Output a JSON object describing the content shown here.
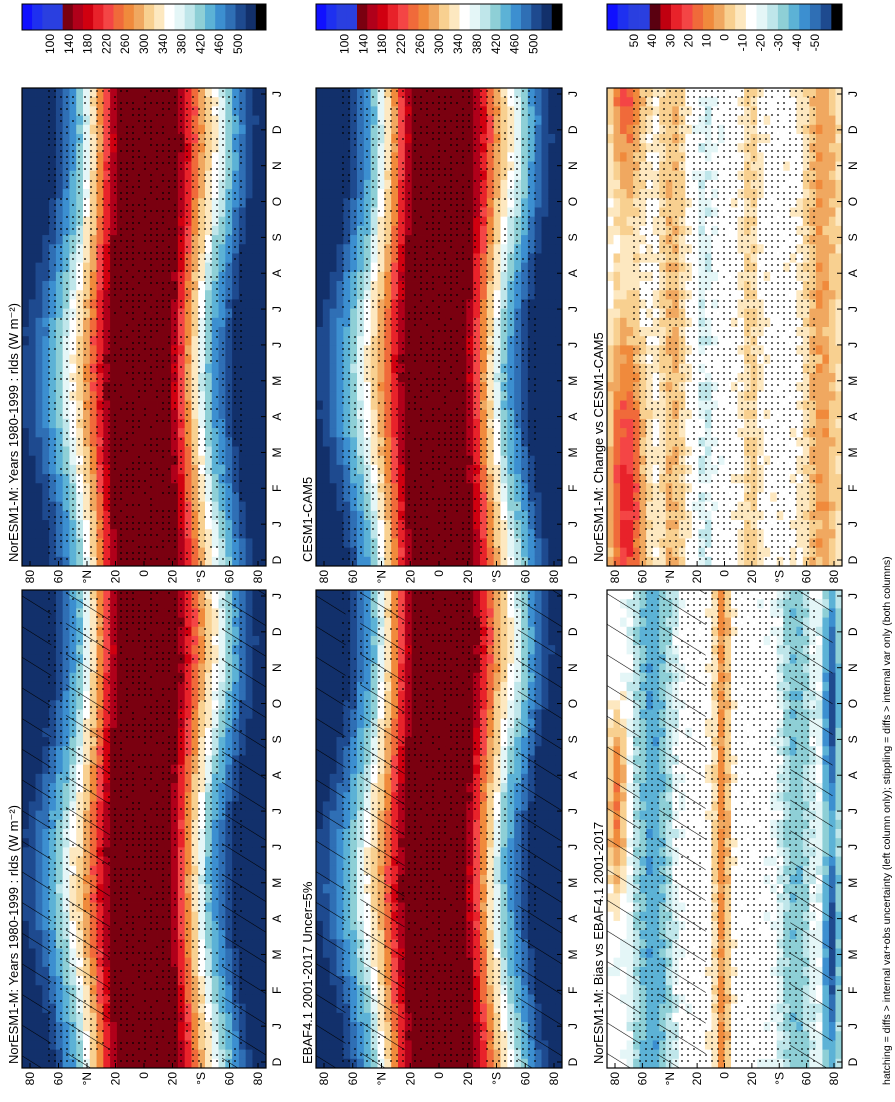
{
  "figure": {
    "footnote": "hatching = diffs > internal var+obs uncertainty (left column only); stippling = diffs > internal var only (both columns)"
  },
  "chart_data": [
    {
      "id": "norm_left",
      "type": "heatmap",
      "title": "NorESM1-M: Years 1980-1999 : rlds (W m⁻²)",
      "hatch": true,
      "stipple": true,
      "field": "abs",
      "seed": 11,
      "lat_labels": [
        "80",
        "60",
        "°N",
        "20",
        "0",
        "20",
        "°S",
        "60",
        "80"
      ],
      "month_labels": [
        "D",
        "J",
        "F",
        "M",
        "A",
        "M",
        "J",
        "J",
        "A",
        "S",
        "O",
        "N",
        "D",
        "J"
      ],
      "colorbar": {
        "values": [
          "100",
          "140",
          "180",
          "220",
          "260",
          "300",
          "340",
          "380",
          "420",
          "460",
          "500"
        ],
        "range": [
          80,
          520
        ]
      }
    },
    {
      "id": "obs",
      "type": "heatmap",
      "title": "EBAF4.1 2001-2017 Uncer=5%",
      "hatch": true,
      "stipple": true,
      "field": "abs",
      "seed": 23,
      "lat_labels": [
        "80",
        "60",
        "°N",
        "20",
        "0",
        "20",
        "°S",
        "60",
        "80"
      ],
      "month_labels": [
        "D",
        "J",
        "F",
        "M",
        "A",
        "M",
        "J",
        "J",
        "A",
        "S",
        "O",
        "N",
        "D",
        "J"
      ],
      "colorbar": {
        "values": [
          "100",
          "140",
          "180",
          "220",
          "260",
          "300",
          "340",
          "380",
          "420",
          "460",
          "500"
        ],
        "range": [
          80,
          520
        ]
      }
    },
    {
      "id": "bias",
      "type": "heatmap",
      "title": "NorESM1-M: Bias vs EBAF4.1 2001-2017",
      "hatch": true,
      "stipple": true,
      "field": "bias",
      "seed": 37,
      "lat_labels": [
        "80",
        "60",
        "°N",
        "20",
        "0",
        "20",
        "°S",
        "60",
        "80"
      ],
      "month_labels": [
        "D",
        "J",
        "F",
        "M",
        "A",
        "M",
        "J",
        "J",
        "A",
        "S",
        "O",
        "N",
        "D",
        "J"
      ],
      "colorbar": {
        "values": [
          "-50",
          "-40",
          "-30",
          "-20",
          "-10",
          "0",
          "10",
          "20",
          "30",
          "40",
          "50"
        ],
        "range": [
          -60,
          60
        ]
      }
    },
    {
      "id": "norm_right",
      "type": "heatmap",
      "title": "NorESM1-M: Years 1980-1999 : rlds (W m⁻²)",
      "hatch": false,
      "stipple": true,
      "field": "abs",
      "seed": 41,
      "lat_labels": [
        "80",
        "60",
        "°N",
        "20",
        "0",
        "20",
        "°S",
        "60",
        "80"
      ],
      "month_labels": [
        "D",
        "J",
        "F",
        "M",
        "A",
        "M",
        "J",
        "J",
        "A",
        "S",
        "O",
        "N",
        "D",
        "J"
      ],
      "colorbar": {
        "values": [
          "100",
          "140",
          "180",
          "220",
          "260",
          "300",
          "340",
          "380",
          "420",
          "460",
          "500"
        ],
        "range": [
          80,
          520
        ]
      }
    },
    {
      "id": "cesm",
      "type": "heatmap",
      "title": "CESM1-CAM5",
      "hatch": false,
      "stipple": true,
      "field": "abs2",
      "seed": 53,
      "lat_labels": [
        "80",
        "60",
        "°N",
        "20",
        "0",
        "20",
        "°S",
        "60",
        "80"
      ],
      "month_labels": [
        "D",
        "J",
        "F",
        "M",
        "A",
        "M",
        "J",
        "J",
        "A",
        "S",
        "O",
        "N",
        "D",
        "J"
      ],
      "colorbar": {
        "values": [
          "100",
          "140",
          "180",
          "220",
          "260",
          "300",
          "340",
          "380",
          "420",
          "460",
          "500"
        ],
        "range": [
          80,
          520
        ]
      }
    },
    {
      "id": "change",
      "type": "heatmap",
      "title": "NorESM1-M: Change vs CESM1-CAM5",
      "hatch": false,
      "stipple": true,
      "field": "change",
      "seed": 67,
      "lat_labels": [
        "80",
        "60",
        "°N",
        "20",
        "0",
        "20",
        "°S",
        "60",
        "80"
      ],
      "month_labels": [
        "D",
        "J",
        "F",
        "M",
        "A",
        "M",
        "J",
        "J",
        "A",
        "S",
        "O",
        "N",
        "D",
        "J"
      ],
      "colorbar": {
        "values": [
          "50",
          "40",
          "30",
          "20",
          "10",
          "0",
          "-10",
          "-20",
          "-30",
          "-40",
          "-50"
        ],
        "range": [
          -60,
          60
        ]
      }
    }
  ],
  "palette": [
    "#1010ff",
    "#2a4bff",
    "#e0001a",
    "#e8222a",
    "#f44545",
    "#f06a3a",
    "#f08a3c",
    "#f0a860",
    "#f8d090",
    "#fde8c0",
    "#ffffff",
    "#e4f6f7",
    "#bfe6ea",
    "#8ecfd6",
    "#5cb2d6",
    "#3c8fd0",
    "#2f6fb5",
    "#1e4a8f",
    "#12306b",
    "#000000"
  ],
  "palette_abs": [
    "#1010ff",
    "#1e30f0",
    "#2a3fe0",
    "#7a0010",
    "#b0001a",
    "#d00010",
    "#e8222a",
    "#f44545",
    "#f06a3a",
    "#f08a3c",
    "#f0a860",
    "#f8d090",
    "#fde8c0",
    "#ffffff",
    "#f2fbfb",
    "#e4f6f7",
    "#bfe6ea",
    "#8ecfd6",
    "#5cb2d6",
    "#3c8fd0",
    "#2f6fb5",
    "#1e4a8f",
    "#12306b",
    "#000000"
  ],
  "palette_diff": [
    "#1010ff",
    "#1e30f0",
    "#2a3fe0",
    "#5a0010",
    "#c00010",
    "#e8222a",
    "#f44545",
    "#f06a3a",
    "#f08a3c",
    "#f0a860",
    "#f8d090",
    "#fde8c0",
    "#ffffff",
    "#e4f6f7",
    "#bfe6ea",
    "#8ecfd6",
    "#5cb2d6",
    "#3c8fd0",
    "#2f6fb5",
    "#1e4a8f",
    "#12306b",
    "#000000"
  ]
}
